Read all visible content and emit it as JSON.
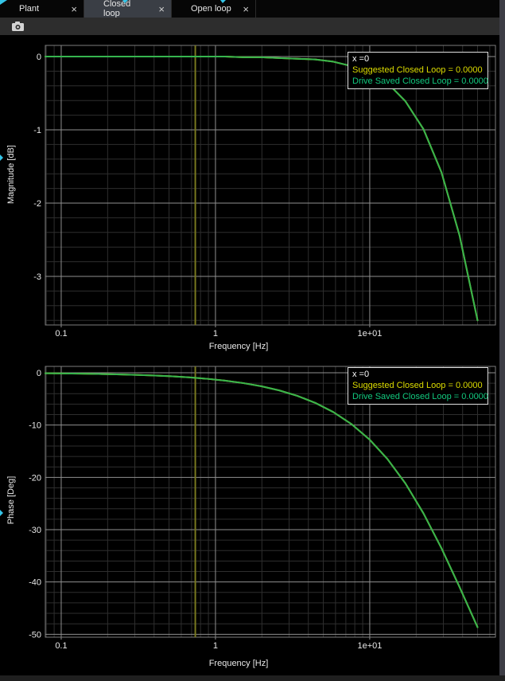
{
  "tabs": [
    {
      "label": "Plant",
      "active": false,
      "close": "×"
    },
    {
      "label": "Closed loop",
      "active": true,
      "close": "×"
    },
    {
      "label": "Open loop",
      "active": false,
      "close": "×"
    }
  ],
  "toolbar": {
    "camera_icon": "camera"
  },
  "colors": {
    "curve_suggested": "#d8d800",
    "curve_saved": "#36b44e",
    "cursor_marker": "#78781f",
    "grid_minor": "#2e2e2e",
    "grid_major": "#8f8f8f",
    "plot_border": "#7d7d7d",
    "tick_label": "#e8e8e8",
    "accent_cyan": "#35c5e8"
  },
  "chart_data": [
    {
      "type": "line",
      "title": "",
      "xlabel": "Frequency [Hz]",
      "ylabel": "Magnitude [dB]",
      "xscale": "log",
      "xlim": [
        0.0789,
        65.3
      ],
      "ylim": [
        -3.663,
        0.152
      ],
      "xticks": [
        {
          "value": 0.1,
          "label": "0.1"
        },
        {
          "value": 1,
          "label": "1"
        },
        {
          "value": 10,
          "label": "1e+01"
        }
      ],
      "yticks": [
        {
          "value": 0,
          "label": "0"
        },
        {
          "value": -1,
          "label": "-1"
        },
        {
          "value": -2,
          "label": "-2"
        },
        {
          "value": -3,
          "label": "-3"
        }
      ],
      "y_minor_step": 0.2,
      "y_major_step": 1,
      "marker_freq_hz": 0.74,
      "x": [
        0.078,
        0.102,
        0.134,
        0.175,
        0.229,
        0.3,
        0.393,
        0.514,
        0.673,
        0.881,
        1.153,
        1.51,
        1.976,
        2.587,
        3.386,
        4.432,
        5.801,
        7.593,
        9.938,
        13.008,
        17.027,
        22.287,
        29.174,
        38.187,
        49.984
      ],
      "series": [
        {
          "name": "Suggested Closed Loop",
          "color": "#d8d800",
          "values": [
            0,
            0,
            0,
            0,
            0,
            0,
            0,
            0,
            0,
            0,
            0,
            -0.01,
            -0.01,
            -0.02,
            -0.03,
            -0.04,
            -0.07,
            -0.13,
            -0.22,
            -0.36,
            -0.61,
            -0.99,
            -1.58,
            -2.44,
            -3.6
          ]
        },
        {
          "name": "Drive Saved Closed Loop",
          "color": "#36b44e",
          "values": [
            0,
            0,
            0,
            0,
            0,
            0,
            0,
            0,
            0,
            0,
            0,
            -0.01,
            -0.01,
            -0.02,
            -0.03,
            -0.04,
            -0.07,
            -0.13,
            -0.22,
            -0.36,
            -0.61,
            -0.99,
            -1.58,
            -2.44,
            -3.6
          ]
        }
      ],
      "cursor": {
        "text": "x =0",
        "suggested": "Suggested Closed Loop = 0.0000",
        "saved": "Drive Saved Closed Loop = 0.0000"
      }
    },
    {
      "type": "line",
      "title": "",
      "xlabel": "Frequency [Hz]",
      "ylabel": "Phase [Deg]",
      "xscale": "log",
      "xlim": [
        0.0789,
        65.3
      ],
      "ylim": [
        -50.56,
        1.22
      ],
      "xticks": [
        {
          "value": 0.1,
          "label": "0.1"
        },
        {
          "value": 1,
          "label": "1"
        },
        {
          "value": 10,
          "label": "1e+01"
        }
      ],
      "yticks": [
        {
          "value": 0,
          "label": "0"
        },
        {
          "value": -10,
          "label": "-10"
        },
        {
          "value": -20,
          "label": "-20"
        },
        {
          "value": -30,
          "label": "-30"
        },
        {
          "value": -40,
          "label": "-40"
        },
        {
          "value": -50,
          "label": "-50"
        }
      ],
      "y_minor_step": 2,
      "y_major_step": 10,
      "marker_freq_hz": 0.74,
      "x": [
        0.078,
        0.102,
        0.134,
        0.175,
        0.229,
        0.3,
        0.393,
        0.514,
        0.673,
        0.881,
        1.153,
        1.51,
        1.976,
        2.587,
        3.386,
        4.432,
        5.801,
        7.593,
        9.938,
        13.008,
        17.027,
        22.287,
        29.174,
        38.187,
        49.984
      ],
      "series": [
        {
          "name": "Suggested Closed Loop",
          "color": "#d8d800",
          "values": [
            -0.1,
            -0.13,
            -0.17,
            -0.23,
            -0.3,
            -0.39,
            -0.51,
            -0.67,
            -0.88,
            -1.15,
            -1.5,
            -1.97,
            -2.57,
            -3.37,
            -4.4,
            -5.75,
            -7.51,
            -9.79,
            -12.73,
            -16.47,
            -21.15,
            -26.87,
            -33.55,
            -40.96,
            -48.65
          ]
        },
        {
          "name": "Drive Saved Closed Loop",
          "color": "#36b44e",
          "values": [
            -0.1,
            -0.13,
            -0.17,
            -0.23,
            -0.3,
            -0.39,
            -0.51,
            -0.67,
            -0.88,
            -1.15,
            -1.5,
            -1.97,
            -2.57,
            -3.37,
            -4.4,
            -5.75,
            -7.51,
            -9.79,
            -12.73,
            -16.47,
            -21.15,
            -26.87,
            -33.55,
            -40.96,
            -48.65
          ]
        }
      ],
      "cursor": {
        "text": "x =0",
        "suggested": "Suggested Closed Loop = 0.0000",
        "saved": "Drive Saved Closed Loop = 0.0000"
      }
    }
  ]
}
